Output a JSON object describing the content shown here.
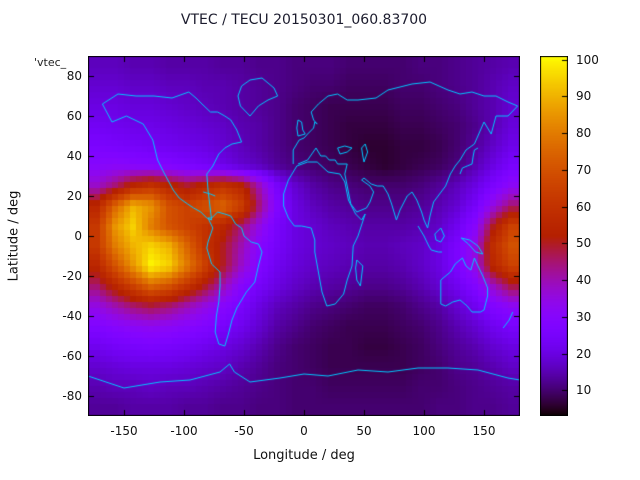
{
  "key_label": "'vtec_",
  "chart_data": {
    "type": "heatmap",
    "title": "VTEC / TECU 20150301_060.83700",
    "xlabel": "Longitude / deg",
    "ylabel": "Latitude / deg",
    "units": "TECU",
    "x_range": [
      -180,
      180
    ],
    "y_range": [
      -90,
      90
    ],
    "x_ticks": [
      -150,
      -100,
      -50,
      0,
      50,
      100,
      150
    ],
    "y_ticks": [
      80,
      60,
      40,
      20,
      0,
      -20,
      -40,
      -60,
      -80
    ],
    "colorbar_ticks": [
      10,
      20,
      30,
      40,
      50,
      60,
      70,
      80,
      90,
      100
    ],
    "colorbar_range": [
      3,
      101
    ],
    "palette": "gnuplot pm3d rgbformulae 7,5,15 (black - purple - violet - red - orange - yellow)",
    "coastline_color": "#00c8ff",
    "grid": {
      "lon_start": -172.5,
      "lon_step": 15,
      "lat_start": 85,
      "lat_step": -10,
      "values": [
        [
          16,
          16,
          15,
          15,
          14,
          14,
          14,
          13,
          13,
          12,
          12,
          11,
          11,
          11,
          10,
          10,
          10,
          10,
          11,
          11,
          12,
          13,
          14,
          15
        ],
        [
          18,
          18,
          17,
          17,
          16,
          16,
          15,
          15,
          14,
          13,
          12,
          11,
          10,
          10,
          9,
          9,
          9,
          10,
          10,
          11,
          12,
          13,
          15,
          17
        ],
        [
          20,
          20,
          19,
          19,
          18,
          17,
          16,
          15,
          14,
          13,
          12,
          10,
          9,
          8,
          8,
          8,
          8,
          9,
          9,
          10,
          11,
          13,
          15,
          18
        ],
        [
          23,
          22,
          21,
          21,
          20,
          19,
          18,
          17,
          15,
          14,
          12,
          10,
          9,
          8,
          7,
          7,
          7,
          8,
          8,
          9,
          10,
          12,
          15,
          19
        ],
        [
          26,
          25,
          24,
          23,
          22,
          21,
          20,
          18,
          16,
          14,
          12,
          10,
          9,
          8,
          7,
          6,
          6,
          7,
          7,
          8,
          10,
          13,
          17,
          21
        ],
        [
          30,
          31,
          30,
          29,
          28,
          26,
          24,
          21,
          18,
          16,
          13,
          11,
          10,
          9,
          8,
          7,
          6,
          7,
          8,
          9,
          11,
          15,
          20,
          25
        ],
        [
          38,
          45,
          55,
          60,
          55,
          50,
          55,
          60,
          55,
          40,
          25,
          18,
          14,
          12,
          11,
          10,
          10,
          10,
          11,
          13,
          16,
          20,
          26,
          32
        ],
        [
          55,
          75,
          90,
          85,
          70,
          65,
          70,
          75,
          65,
          45,
          28,
          20,
          16,
          14,
          13,
          12,
          12,
          12,
          13,
          15,
          18,
          24,
          35,
          45
        ],
        [
          62,
          85,
          95,
          80,
          70,
          65,
          60,
          55,
          45,
          35,
          25,
          20,
          18,
          16,
          15,
          14,
          14,
          14,
          15,
          17,
          22,
          30,
          50,
          65
        ],
        [
          62,
          80,
          90,
          95,
          90,
          75,
          60,
          50,
          40,
          30,
          24,
          20,
          18,
          17,
          16,
          15,
          15,
          16,
          17,
          20,
          26,
          35,
          58,
          70
        ],
        [
          55,
          70,
          85,
          100,
          95,
          80,
          65,
          50,
          38,
          28,
          22,
          19,
          17,
          16,
          15,
          14,
          14,
          15,
          17,
          20,
          26,
          35,
          55,
          65
        ],
        [
          45,
          55,
          65,
          75,
          70,
          60,
          50,
          40,
          30,
          24,
          20,
          17,
          15,
          14,
          13,
          12,
          12,
          13,
          15,
          18,
          22,
          28,
          38,
          48
        ],
        [
          35,
          40,
          45,
          48,
          45,
          40,
          35,
          30,
          25,
          20,
          16,
          14,
          12,
          11,
          10,
          9,
          9,
          10,
          12,
          14,
          18,
          22,
          28,
          32
        ],
        [
          28,
          30,
          32,
          33,
          32,
          30,
          28,
          25,
          22,
          18,
          14,
          12,
          10,
          9,
          8,
          8,
          8,
          9,
          10,
          12,
          15,
          18,
          22,
          25
        ],
        [
          22,
          24,
          25,
          26,
          25,
          24,
          22,
          20,
          18,
          15,
          12,
          10,
          9,
          8,
          8,
          7,
          7,
          8,
          9,
          11,
          13,
          15,
          18,
          20
        ],
        [
          18,
          19,
          20,
          20,
          20,
          19,
          18,
          17,
          15,
          13,
          11,
          10,
          9,
          8,
          8,
          8,
          8,
          8,
          9,
          10,
          12,
          13,
          15,
          17
        ],
        [
          15,
          16,
          16,
          17,
          16,
          16,
          15,
          14,
          13,
          12,
          11,
          10,
          10,
          9,
          9,
          9,
          9,
          9,
          10,
          10,
          11,
          12,
          13,
          14
        ],
        [
          13,
          13,
          14,
          14,
          14,
          13,
          13,
          12,
          12,
          11,
          11,
          10,
          10,
          10,
          10,
          10,
          10,
          10,
          10,
          11,
          11,
          12,
          12,
          13
        ]
      ]
    },
    "coastlines": [
      [
        -168,
        66,
        -160,
        57,
        -148,
        60,
        -134,
        56,
        -126,
        48,
        -122,
        38,
        -117,
        32,
        -109,
        23,
        -104,
        19,
        -97,
        16,
        -92,
        14,
        -86,
        12,
        -81,
        9,
        -77,
        8,
        -80,
        23,
        -81,
        31,
        -76,
        35,
        -71,
        41,
        -66,
        44,
        -60,
        46,
        -52,
        47,
        -56,
        53,
        -61,
        58,
        -66,
        60,
        -72,
        62,
        -78,
        62,
        -85,
        66,
        -90,
        69,
        -96,
        72,
        -110,
        69,
        -125,
        70,
        -140,
        70,
        -155,
        71,
        -168,
        66
      ],
      [
        -80,
        9,
        -76,
        4,
        -80,
        -3,
        -81,
        -6,
        -77,
        -14,
        -70,
        -18,
        -70,
        -25,
        -71,
        -33,
        -73,
        -40,
        -74,
        -48,
        -71,
        -54,
        -66,
        -55,
        -63,
        -49,
        -60,
        -42,
        -56,
        -36,
        -48,
        -28,
        -41,
        -23,
        -38,
        -15,
        -35,
        -8,
        -38,
        -4,
        -44,
        -3,
        -50,
        0,
        -52,
        4,
        -57,
        6,
        -61,
        10,
        -66,
        11,
        -72,
        12,
        -77,
        9,
        -80,
        9
      ],
      [
        -45,
        60,
        -53,
        65,
        -55,
        70,
        -52,
        75,
        -45,
        78,
        -35,
        79,
        -25,
        74,
        -22,
        70,
        -30,
        68,
        -38,
        65,
        -45,
        60
      ],
      [
        -9,
        36,
        -9,
        43,
        -4,
        48,
        0,
        49,
        3,
        51,
        8,
        54,
        9,
        57,
        11,
        56,
        8,
        58,
        6,
        62,
        12,
        66,
        20,
        70,
        28,
        71,
        36,
        68,
        45,
        68
      ],
      [
        -5,
        36,
        3,
        38,
        10,
        44,
        14,
        40,
        18,
        40,
        21,
        38,
        26,
        38,
        28,
        36,
        36,
        36
      ],
      [
        -6,
        35,
        3,
        37,
        11,
        37,
        20,
        32,
        30,
        31,
        34,
        27,
        37,
        18,
        43,
        11,
        48,
        8,
        51,
        11,
        45,
        0,
        41,
        -5,
        40,
        -15,
        36,
        -22,
        33,
        -29,
        26,
        -34,
        19,
        -35,
        15,
        -28,
        12,
        -18,
        9,
        -8,
        9,
        -2,
        6,
        4,
        -2,
        5,
        -8,
        5,
        -13,
        9,
        -17,
        15,
        -17,
        21,
        -13,
        28,
        -10,
        31,
        -6,
        35
      ],
      [
        45,
        68,
        60,
        69,
        70,
        73,
        90,
        76,
        105,
        77,
        120,
        73,
        130,
        71,
        140,
        72,
        150,
        70,
        160,
        70,
        170,
        67,
        178,
        65,
        170,
        60,
        160,
        60,
        156,
        51,
        150,
        57,
        142,
        46,
        135,
        43,
        130,
        38,
        126,
        35,
        122,
        31,
        118,
        25,
        108,
        17,
        105,
        10,
        103,
        4,
        100,
        8,
        98,
        12,
        94,
        18,
        90,
        22,
        86,
        20,
        80,
        13,
        77,
        8,
        73,
        16,
        70,
        21,
        66,
        25,
        61,
        25,
        56,
        26,
        50,
        29,
        48,
        28,
        55,
        25,
        58,
        22,
        55,
        17,
        52,
        14,
        44,
        12,
        39,
        16,
        35,
        28,
        34,
        31,
        36,
        36
      ],
      [
        114,
        -22,
        114,
        -34,
        118,
        -35,
        124,
        -33,
        130,
        -32,
        136,
        -35,
        140,
        -38,
        147,
        -38,
        150,
        -37,
        153,
        -30,
        153,
        -26,
        149,
        -20,
        145,
        -15,
        142,
        -11,
        139,
        -17,
        135,
        -15,
        132,
        -11,
        126,
        -14,
        122,
        -18,
        114,
        -22
      ],
      [
        -180,
        -70,
        -150,
        -76,
        -120,
        -73,
        -95,
        -72,
        -70,
        -68,
        -62,
        -64,
        -58,
        -68,
        -45,
        -73,
        -20,
        -71,
        0,
        -69,
        20,
        -70,
        45,
        -67,
        70,
        -68,
        95,
        -66,
        120,
        -66,
        145,
        -67,
        170,
        -71,
        180,
        -72
      ],
      [
        -5,
        50,
        -6,
        54,
        -5,
        58,
        -2,
        57,
        -1,
        53,
        1,
        51,
        -5,
        50
      ],
      [
        130,
        31,
        132,
        34,
        136,
        35,
        140,
        36,
        141,
        40,
        142,
        43,
        145,
        44
      ],
      [
        44,
        -12,
        49,
        -15,
        47,
        -25,
        44,
        -22,
        43,
        -16,
        44,
        -12
      ],
      [
        131,
        -1,
        138,
        -2,
        145,
        -5,
        149,
        -9,
        143,
        -8,
        137,
        -4,
        131,
        -1
      ],
      [
        95,
        5,
        100,
        0,
        104,
        -5,
        106,
        -7,
        112,
        -8,
        115,
        -8
      ],
      [
        109,
        1,
        114,
        4,
        117,
        0,
        114,
        -3,
        110,
        -2,
        109,
        1
      ],
      [
        50,
        37,
        53,
        42,
        51,
        46,
        48,
        44,
        49,
        40,
        50,
        37
      ],
      [
        28,
        44,
        34,
        45,
        40,
        44,
        36,
        42,
        30,
        41,
        28,
        44
      ],
      [
        166,
        -46,
        171,
        -42,
        174,
        -38
      ],
      [
        -84,
        22,
        -78,
        21,
        -74,
        20
      ]
    ]
  }
}
